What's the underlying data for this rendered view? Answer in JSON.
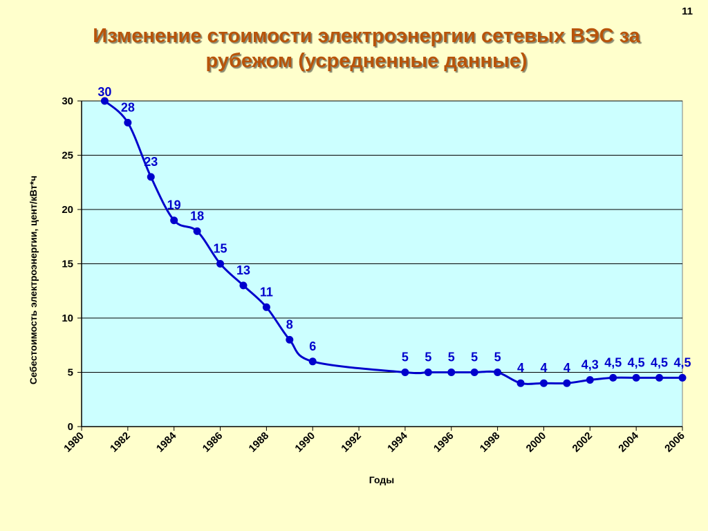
{
  "slide": {
    "number": "11"
  },
  "chart_data": {
    "type": "line",
    "title": "Изменение стоимости электроэнергии сетевых ВЭС за рубежом (усредненные данные)",
    "xlabel": "Годы",
    "ylabel": "Себестоимость электроэнергии, цент/кВт*ч",
    "xlim": [
      1980,
      2006
    ],
    "ylim": [
      0,
      30
    ],
    "x_ticks": [
      "1980",
      "1982",
      "1984",
      "1986",
      "1988",
      "1990",
      "1992",
      "1994",
      "1996",
      "1998",
      "2000",
      "2002",
      "2004",
      "2006"
    ],
    "y_ticks": [
      "0",
      "5",
      "10",
      "15",
      "20",
      "25",
      "30"
    ],
    "grid": true,
    "legend": "none",
    "colors": {
      "line": "#0000cc",
      "plot_bg": "#ccffff",
      "page_bg": "#ffffcc",
      "title": "#b8540a"
    },
    "series": [
      {
        "x": [
          1981,
          1982,
          1983,
          1984,
          1985,
          1986,
          1987,
          1988,
          1989,
          1990,
          1994,
          1995,
          1996,
          1997,
          1998,
          1999,
          2000,
          2001,
          2002,
          2003,
          2004,
          2005,
          2006
        ],
        "y": [
          30,
          28,
          23,
          19,
          18,
          15,
          13,
          11,
          8,
          6,
          5,
          5,
          5,
          5,
          5,
          4,
          4,
          4,
          4.3,
          4.5,
          4.5,
          4.5,
          4.5
        ],
        "labels": [
          "30",
          "28",
          "23",
          "19",
          "18",
          "15",
          "13",
          "11",
          "8",
          "6",
          "5",
          "5",
          "5",
          "5",
          "5",
          "4",
          "4",
          "4",
          "4,3",
          "4,5",
          "4,5",
          "4,5",
          "4,5"
        ]
      }
    ]
  }
}
